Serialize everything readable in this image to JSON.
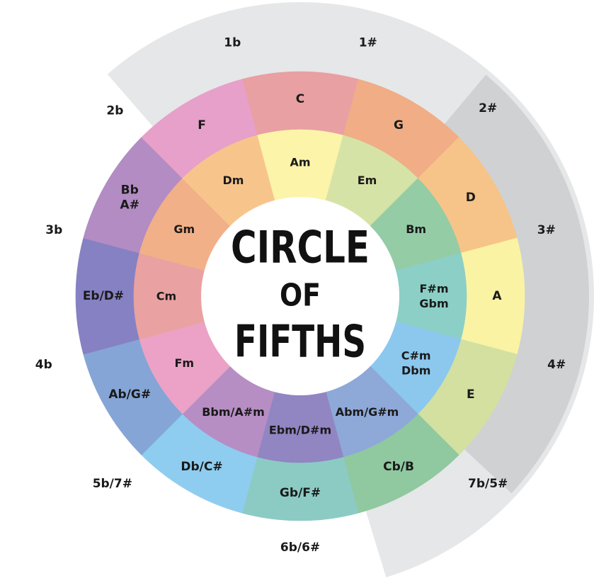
{
  "title": {
    "line1": "CIRCLE",
    "line2": "OF",
    "line3": "FIFTHS"
  },
  "colors": {
    "band_light": "#e6e7e8",
    "band_dark": "#d0d1d3",
    "center": "#ffffff",
    "text": "#1a1a1a"
  },
  "segments": [
    {
      "major": [
        "C"
      ],
      "minor": [
        "Am"
      ],
      "signature": "",
      "major_color": "#e8a0a3",
      "minor_color": "#fbf4a9"
    },
    {
      "major": [
        "G"
      ],
      "minor": [
        "Em"
      ],
      "signature": "1#",
      "major_color": "#f0ad86",
      "minor_color": "#d6e3a6"
    },
    {
      "major": [
        "D"
      ],
      "minor": [
        "Bm"
      ],
      "signature": "2#",
      "major_color": "#f6c488",
      "minor_color": "#94cca6"
    },
    {
      "major": [
        "A"
      ],
      "minor": [
        "F#m",
        "Gbm"
      ],
      "signature": "3#",
      "major_color": "#faf3a4",
      "minor_color": "#8ccfc6"
    },
    {
      "major": [
        "E"
      ],
      "minor": [
        "C#m",
        "Dbm"
      ],
      "signature": "4#",
      "major_color": "#d3e0a0",
      "minor_color": "#8cc8ee"
    },
    {
      "major": [
        "Cb/B"
      ],
      "minor": [
        "Abm/G#m"
      ],
      "signature": "7b/5#",
      "major_color": "#90c8a0",
      "minor_color": "#8ea8d8"
    },
    {
      "major": [
        "Gb/F#"
      ],
      "minor": [
        "Ebm/D#m"
      ],
      "signature": "6b/6#",
      "major_color": "#8ccbc4",
      "minor_color": "#9185c2"
    },
    {
      "major": [
        "Db/C#"
      ],
      "minor": [
        "Bbm/A#m"
      ],
      "signature": "5b/7#",
      "major_color": "#8ecdef",
      "minor_color": "#b68ec4"
    },
    {
      "major": [
        "Ab/G#"
      ],
      "minor": [
        "Fm"
      ],
      "signature": "4b",
      "major_color": "#85a5d6",
      "minor_color": "#eba2c6"
    },
    {
      "major": [
        "Eb/D#"
      ],
      "minor": [
        "Cm"
      ],
      "signature": "3b",
      "major_color": "#8681c2",
      "minor_color": "#e9a2a1"
    },
    {
      "major": [
        "Bb",
        "A#"
      ],
      "minor": [
        "Gm"
      ],
      "signature": "2b",
      "major_color": "#b28cc3",
      "minor_color": "#f2b088"
    },
    {
      "major": [
        "F"
      ],
      "minor": [
        "Dm"
      ],
      "signature": "1b",
      "major_color": "#e6a0c9",
      "minor_color": "#f7c58c"
    }
  ]
}
